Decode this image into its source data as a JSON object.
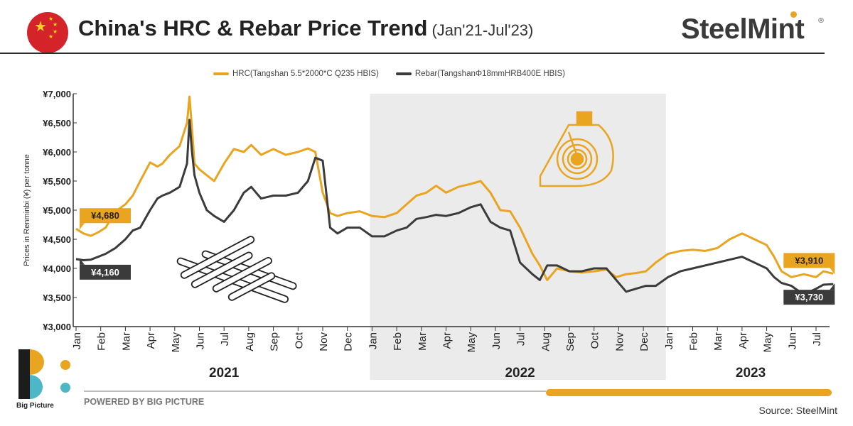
{
  "header": {
    "title": "China's HRC & Rebar Price Trend",
    "subtitle": "(Jan'21-Jul'23)",
    "brand": "SteelMint",
    "brand_mark": "®"
  },
  "footer": {
    "powered_by": "POWERED BY BIG PICTURE",
    "logo_text": "Big Picture",
    "source": "Source: SteelMint"
  },
  "colors": {
    "hrc": "#e9a420",
    "rebar": "#3b3b3b",
    "shade": "#ebebeb",
    "flag": "#d5232a"
  },
  "chart_data": {
    "type": "line",
    "title": "China's HRC & Rebar Price Trend",
    "ylabel": "Prices in Renminbi (¥) per tonne",
    "ylim": [
      3000,
      7000
    ],
    "yticks": [
      3000,
      3500,
      4000,
      4500,
      5000,
      5500,
      6000,
      6500,
      7000
    ],
    "ytick_labels": [
      "¥3,000",
      "¥3,500",
      "¥4,000",
      "¥4,500",
      "¥5,000",
      "¥5,500",
      "¥6,000",
      "¥6,500",
      "¥7,000"
    ],
    "x_labels": [
      "Jan",
      "Feb",
      "Mar",
      "Apr",
      "May",
      "Jun",
      "Jul",
      "Aug",
      "Sep",
      "Oct",
      "Nov",
      "Dec",
      "Jan",
      "Feb",
      "Mar",
      "Apr",
      "May",
      "Jun",
      "Jul",
      "Aug",
      "Sep",
      "Oct",
      "Nov",
      "Dec",
      "Jan",
      "Feb",
      "Mar",
      "Apr",
      "May",
      "Jun",
      "Jul"
    ],
    "years": [
      {
        "label": "2021",
        "start": 0,
        "end": 12
      },
      {
        "label": "2022",
        "start": 12,
        "end": 24
      },
      {
        "label": "2023",
        "start": 24,
        "end": 30.7
      }
    ],
    "shaded_range": [
      12,
      24
    ],
    "series": [
      {
        "name": "HRC(Tangshan 5.5*2000*C Q235 HBIS)",
        "x": [
          0,
          0.3,
          0.6,
          0.9,
          1.2,
          1.6,
          2,
          2.3,
          2.6,
          3,
          3.3,
          3.5,
          3.8,
          4.2,
          4.5,
          4.6,
          4.7,
          4.8,
          5,
          5.3,
          5.6,
          6,
          6.4,
          6.8,
          7.1,
          7.5,
          8,
          8.5,
          9,
          9.4,
          9.7,
          10,
          10.3,
          10.6,
          11,
          11.5,
          12,
          12.5,
          13,
          13.4,
          13.8,
          14.2,
          14.6,
          15,
          15.5,
          16,
          16.4,
          16.8,
          17.2,
          17.6,
          18,
          18.5,
          18.8,
          19.1,
          19.5,
          20,
          20.5,
          21,
          21.5,
          21.9,
          22.3,
          22.7,
          23.1,
          23.5,
          24,
          24.5,
          25,
          25.5,
          26,
          26.5,
          27,
          27.5,
          28,
          28.3,
          28.6,
          29,
          29.5,
          30,
          30.3,
          30.7
        ],
        "values": [
          4680,
          4600,
          4560,
          4620,
          4700,
          4980,
          5100,
          5250,
          5500,
          5820,
          5750,
          5800,
          5950,
          6100,
          6500,
          6950,
          6400,
          5800,
          5700,
          5600,
          5500,
          5800,
          6050,
          6000,
          6120,
          5950,
          6050,
          5950,
          6000,
          6060,
          6000,
          5300,
          4950,
          4900,
          4950,
          4980,
          4900,
          4880,
          4950,
          5100,
          5250,
          5300,
          5420,
          5300,
          5400,
          5450,
          5500,
          5300,
          5000,
          4980,
          4700,
          4250,
          4050,
          3800,
          4000,
          3950,
          3930,
          3950,
          3980,
          3850,
          3900,
          3920,
          3950,
          4100,
          4250,
          4300,
          4320,
          4300,
          4350,
          4500,
          4600,
          4500,
          4400,
          4200,
          3950,
          3850,
          3900,
          3850,
          3950,
          3910
        ]
      },
      {
        "name": "Rebar(TangshanΦ18mmHRB400E HBIS)",
        "x": [
          0,
          0.3,
          0.6,
          0.9,
          1.2,
          1.6,
          2,
          2.3,
          2.6,
          3,
          3.3,
          3.5,
          3.8,
          4.2,
          4.5,
          4.6,
          4.7,
          4.8,
          5,
          5.3,
          5.6,
          6,
          6.4,
          6.8,
          7.1,
          7.5,
          8,
          8.5,
          9,
          9.4,
          9.7,
          10,
          10.3,
          10.6,
          11,
          11.5,
          12,
          12.5,
          13,
          13.4,
          13.8,
          14.2,
          14.6,
          15,
          15.5,
          16,
          16.4,
          16.8,
          17.2,
          17.6,
          18,
          18.5,
          18.8,
          19.1,
          19.5,
          20,
          20.5,
          21,
          21.5,
          21.9,
          22.3,
          22.7,
          23.1,
          23.5,
          24,
          24.5,
          25,
          25.5,
          26,
          26.5,
          27,
          27.5,
          28,
          28.3,
          28.6,
          29,
          29.5,
          30,
          30.3,
          30.7
        ],
        "values": [
          4160,
          4140,
          4150,
          4200,
          4250,
          4350,
          4500,
          4650,
          4700,
          5000,
          5200,
          5250,
          5300,
          5400,
          5800,
          6550,
          6000,
          5600,
          5300,
          5000,
          4900,
          4800,
          5000,
          5300,
          5400,
          5200,
          5250,
          5250,
          5300,
          5500,
          5900,
          5850,
          4700,
          4600,
          4700,
          4700,
          4550,
          4550,
          4650,
          4700,
          4850,
          4880,
          4920,
          4900,
          4950,
          5050,
          5100,
          4800,
          4700,
          4650,
          4100,
          3900,
          3800,
          4050,
          4050,
          3950,
          3950,
          4000,
          4000,
          3800,
          3600,
          3650,
          3700,
          3700,
          3850,
          3950,
          4000,
          4050,
          4100,
          4150,
          4200,
          4100,
          4000,
          3850,
          3750,
          3700,
          3550,
          3650,
          3720,
          3730
        ]
      }
    ],
    "callouts": [
      {
        "label": "¥4,680",
        "series": 0,
        "at": 0
      },
      {
        "label": "¥4,160",
        "series": 1,
        "at": 0
      },
      {
        "label": "¥3,910",
        "series": 0,
        "at": 30.7
      },
      {
        "label": "¥3,730",
        "series": 1,
        "at": 30.7
      }
    ]
  }
}
